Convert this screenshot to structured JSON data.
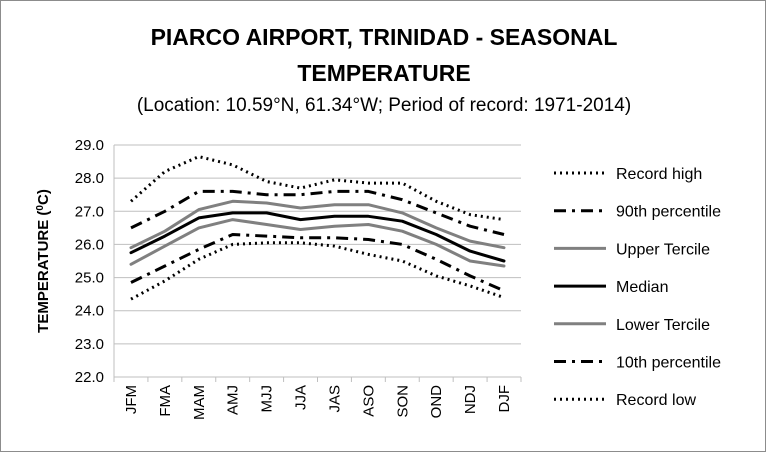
{
  "chart_data": {
    "type": "line",
    "title_line1": "PIARCO AIRPORT, TRINIDAD - SEASONAL",
    "title_line2": "TEMPERATURE",
    "subtitle": "(Location: 10.59°N, 61.34°W; Period of record: 1971-2014)",
    "ylabel_prefix": "TEMPERATURE (",
    "ylabel_sup": "0",
    "ylabel_suffix": "C)",
    "xlabel": "",
    "ylim": [
      22.0,
      29.0
    ],
    "yticks": [
      "22.0",
      "23.0",
      "24.0",
      "25.0",
      "26.0",
      "27.0",
      "28.0",
      "29.0"
    ],
    "grid": true,
    "legend_position": "right",
    "categories": [
      "JFM",
      "FMA",
      "MAM",
      "AMJ",
      "MJJ",
      "JJA",
      "JAS",
      "ASO",
      "SON",
      "OND",
      "NDJ",
      "DJF"
    ],
    "series": [
      {
        "name": "Record high",
        "style": "dotted",
        "color": "#000000",
        "values": [
          27.3,
          28.2,
          28.65,
          28.4,
          27.9,
          27.7,
          27.95,
          27.85,
          27.85,
          27.3,
          26.9,
          26.75
        ]
      },
      {
        "name": "90th percentile",
        "style": "dashdot",
        "color": "#000000",
        "values": [
          26.5,
          27.0,
          27.6,
          27.6,
          27.5,
          27.5,
          27.6,
          27.6,
          27.35,
          26.95,
          26.55,
          26.3
        ]
      },
      {
        "name": "Upper Tercile",
        "style": "solid",
        "color": "#808080",
        "values": [
          25.9,
          26.4,
          27.05,
          27.3,
          27.25,
          27.1,
          27.2,
          27.2,
          26.95,
          26.5,
          26.1,
          25.9
        ]
      },
      {
        "name": "Median",
        "style": "solid",
        "color": "#000000",
        "values": [
          25.75,
          26.25,
          26.8,
          26.95,
          26.95,
          26.75,
          26.85,
          26.85,
          26.7,
          26.3,
          25.8,
          25.5
        ]
      },
      {
        "name": "Lower Tercile",
        "style": "solid",
        "color": "#808080",
        "values": [
          25.4,
          25.95,
          26.5,
          26.75,
          26.6,
          26.45,
          26.55,
          26.6,
          26.4,
          26.0,
          25.5,
          25.35
        ]
      },
      {
        "name": "10th percentile",
        "style": "dashdot",
        "color": "#000000",
        "values": [
          24.85,
          25.35,
          25.85,
          26.3,
          26.25,
          26.2,
          26.2,
          26.15,
          26.0,
          25.55,
          25.05,
          24.6
        ]
      },
      {
        "name": "Record low",
        "style": "dotted",
        "color": "#000000",
        "values": [
          24.35,
          24.9,
          25.55,
          26.0,
          26.05,
          26.05,
          25.95,
          25.7,
          25.5,
          25.05,
          24.75,
          24.4
        ]
      }
    ]
  }
}
